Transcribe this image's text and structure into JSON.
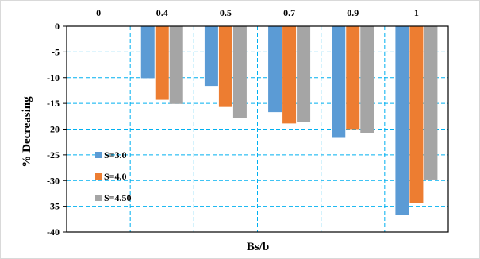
{
  "chart_data": {
    "type": "bar",
    "title": "",
    "xlabel": "Bs/b",
    "ylabel": "% Decreasing",
    "categories": [
      "0",
      "0.4",
      "0.5",
      "0.7",
      "0.9",
      "1"
    ],
    "ylim": [
      -40,
      0
    ],
    "yticks": [
      0,
      -5,
      -10,
      -15,
      -20,
      -25,
      -30,
      -35,
      -40
    ],
    "x_axis_position": "top",
    "grid": true,
    "grid_style": "dashed",
    "legend_position": "left-lower",
    "series": [
      {
        "name": "S=3.0",
        "color": "#5b9bd5",
        "values": [
          0,
          -10.1,
          -11.6,
          -16.7,
          -21.7,
          -36.7
        ]
      },
      {
        "name": "S=4.0",
        "color": "#ed7d31",
        "values": [
          0,
          -14.3,
          -15.7,
          -18.9,
          -20.0,
          -34.4
        ]
      },
      {
        "name": "S=4.50",
        "color": "#a5a5a5",
        "values": [
          0,
          -15.1,
          -17.8,
          -18.6,
          -20.8,
          -29.8
        ]
      }
    ],
    "grid_color": "#00b0f0"
  }
}
